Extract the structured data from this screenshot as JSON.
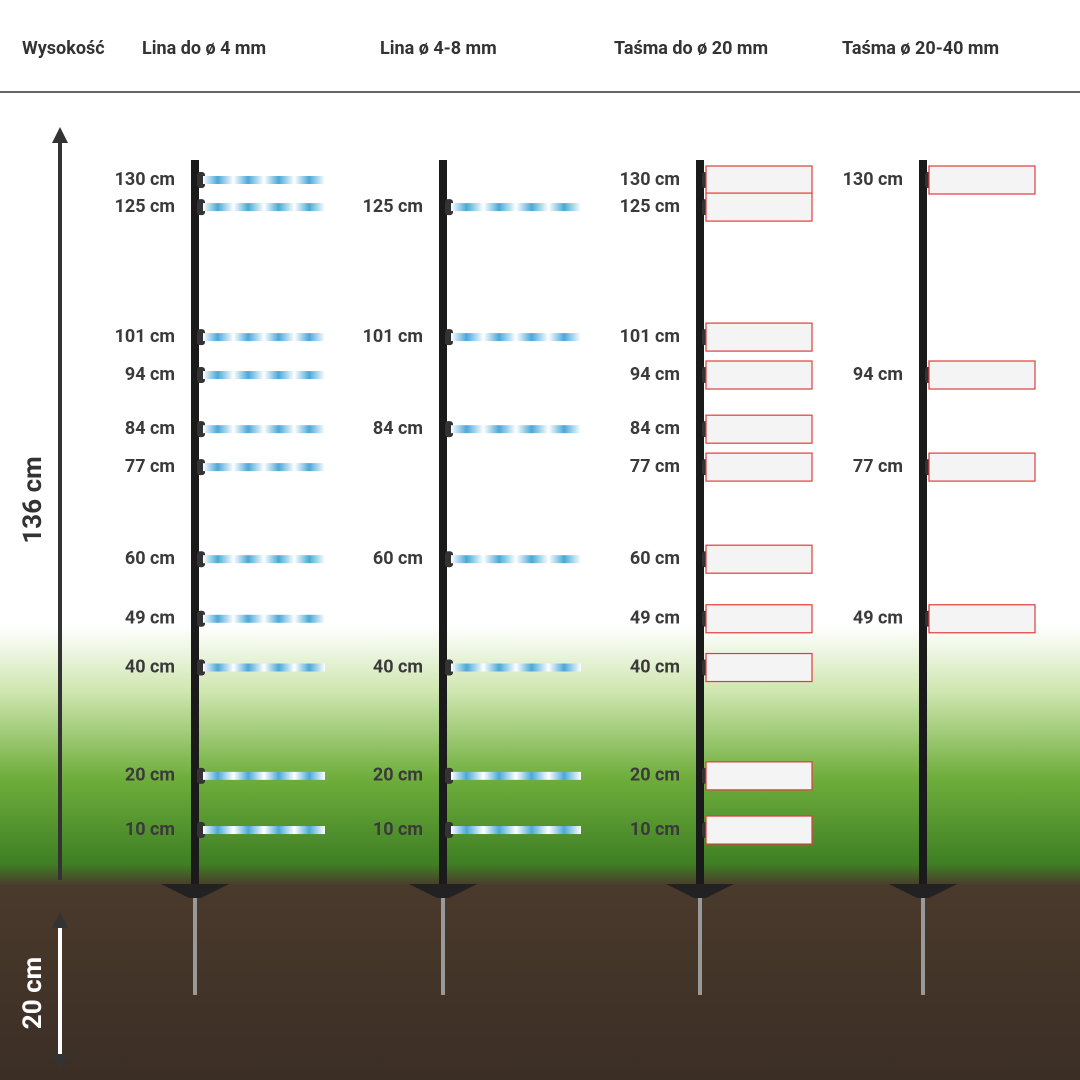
{
  "header": {
    "columns": [
      "Wysokość",
      "Lina do ø 4 mm",
      "Lina ø 4-8 mm",
      "Taśma do ø 20 mm",
      "Taśma ø 20-40 mm"
    ]
  },
  "side": {
    "height": "136 cm",
    "depth": "20 cm"
  },
  "posts": [
    {
      "levels": [
        "130 cm",
        "125 cm",
        "101 cm",
        "94 cm",
        "84 cm",
        "77 cm",
        "60 cm",
        "49 cm",
        "40 cm",
        "20 cm",
        "10 cm"
      ]
    },
    {
      "levels": [
        "125 cm",
        "101 cm",
        "84 cm",
        "60 cm",
        "40 cm",
        "20 cm",
        "10 cm"
      ]
    },
    {
      "levels": [
        "130 cm",
        "125 cm",
        "101 cm",
        "94 cm",
        "84 cm",
        "77 cm",
        "60 cm",
        "49 cm",
        "40 cm",
        "20 cm",
        "10 cm"
      ]
    },
    {
      "levels": [
        "130 cm",
        "94 cm",
        "77 cm",
        "49 cm"
      ]
    }
  ]
}
